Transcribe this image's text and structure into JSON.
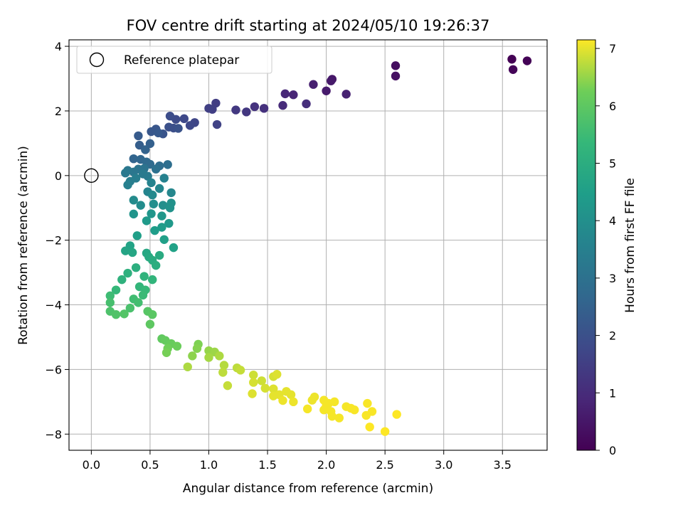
{
  "chart_data": {
    "type": "scatter",
    "title": "FOV centre drift starting at 2024/05/10 19:26:37",
    "xlabel": "Angular distance from reference (arcmin)",
    "ylabel": "Rotation from reference (arcmin)",
    "xlim": [
      -0.19,
      3.88
    ],
    "ylim": [
      -8.5,
      4.2
    ],
    "xticks": [
      0.0,
      0.5,
      1.0,
      1.5,
      2.0,
      2.5,
      3.0,
      3.5
    ],
    "xtick_labels": [
      "0.0",
      "0.5",
      "1.0",
      "1.5",
      "2.0",
      "2.5",
      "3.0",
      "3.5"
    ],
    "yticks": [
      -8,
      -6,
      -4,
      -2,
      0,
      2,
      4
    ],
    "ytick_labels": [
      "−8",
      "−6",
      "−4",
      "−2",
      "0",
      "2",
      "4"
    ],
    "grid": true,
    "legend": {
      "placement": "top-left",
      "entries": [
        {
          "label": "Reference platepar",
          "marker": "open-circle"
        }
      ]
    },
    "reference_point": {
      "x": 0.0,
      "y": 0.0
    },
    "colorbar": {
      "label": "Hours from first FF file",
      "colormap": "viridis",
      "range": [
        0,
        7.15
      ],
      "ticks": [
        0,
        1,
        2,
        3,
        4,
        5,
        6,
        7
      ],
      "tick_labels": [
        "0",
        "1",
        "2",
        "3",
        "4",
        "5",
        "6",
        "7"
      ]
    },
    "series": [
      {
        "points": [
          [
            3.58,
            3.6,
            0.0
          ],
          [
            3.71,
            3.55,
            0.05
          ],
          [
            3.59,
            3.28,
            0.1
          ],
          [
            2.59,
            3.4,
            0.3
          ],
          [
            2.59,
            3.08,
            0.35
          ],
          [
            2.05,
            2.98,
            0.5
          ],
          [
            2.04,
            2.93,
            0.55
          ],
          [
            2.0,
            2.62,
            0.6
          ],
          [
            1.89,
            2.82,
            0.7
          ],
          [
            2.17,
            2.52,
            0.75
          ],
          [
            1.72,
            2.5,
            0.85
          ],
          [
            1.65,
            2.53,
            0.9
          ],
          [
            1.63,
            2.17,
            1.0
          ],
          [
            1.83,
            2.22,
            1.05
          ],
          [
            1.47,
            2.08,
            1.15
          ],
          [
            1.39,
            2.13,
            1.2
          ],
          [
            1.32,
            1.97,
            1.3
          ],
          [
            1.23,
            2.03,
            1.35
          ],
          [
            1.06,
            2.24,
            1.45
          ],
          [
            1.03,
            2.05,
            1.5
          ],
          [
            1.0,
            2.08,
            1.55
          ],
          [
            1.07,
            1.58,
            1.6
          ],
          [
            0.88,
            1.64,
            1.7
          ],
          [
            0.84,
            1.55,
            1.75
          ],
          [
            0.79,
            1.76,
            1.8
          ],
          [
            0.72,
            1.74,
            1.85
          ],
          [
            0.67,
            1.84,
            1.9
          ],
          [
            0.7,
            1.47,
            1.95
          ],
          [
            0.66,
            1.5,
            2.0
          ],
          [
            0.74,
            1.46,
            2.05
          ],
          [
            0.61,
            1.29,
            2.1
          ],
          [
            0.55,
            1.44,
            2.15
          ],
          [
            0.51,
            1.36,
            2.2
          ],
          [
            0.57,
            1.32,
            2.25
          ],
          [
            0.4,
            1.23,
            2.3
          ],
          [
            0.41,
            0.94,
            2.4
          ],
          [
            0.5,
            0.99,
            2.45
          ],
          [
            0.46,
            0.8,
            2.55
          ],
          [
            0.36,
            0.52,
            2.6
          ],
          [
            0.42,
            0.5,
            2.65
          ],
          [
            0.47,
            0.42,
            2.75
          ],
          [
            0.5,
            0.35,
            2.8
          ],
          [
            0.58,
            0.3,
            2.85
          ],
          [
            0.65,
            0.34,
            2.9
          ],
          [
            0.55,
            0.2,
            3.0
          ],
          [
            0.45,
            0.22,
            3.05
          ],
          [
            0.4,
            0.2,
            3.1
          ],
          [
            0.36,
            0.11,
            3.15
          ],
          [
            0.31,
            0.16,
            3.2
          ],
          [
            0.29,
            0.08,
            3.25
          ],
          [
            0.44,
            0.05,
            3.3
          ],
          [
            0.48,
            -0.02,
            3.35
          ],
          [
            0.38,
            -0.08,
            3.4
          ],
          [
            0.33,
            -0.18,
            3.45
          ],
          [
            0.31,
            -0.29,
            3.5
          ],
          [
            0.62,
            -0.08,
            3.55
          ],
          [
            0.51,
            -0.22,
            3.6
          ],
          [
            0.48,
            -0.5,
            3.65
          ],
          [
            0.58,
            -0.4,
            3.7
          ],
          [
            0.68,
            -0.53,
            3.75
          ],
          [
            0.52,
            -0.6,
            3.8
          ],
          [
            0.36,
            -0.76,
            3.85
          ],
          [
            0.42,
            -0.92,
            3.9
          ],
          [
            0.53,
            -0.88,
            3.95
          ],
          [
            0.61,
            -0.92,
            4.0
          ],
          [
            0.68,
            -0.85,
            4.05
          ],
          [
            0.67,
            -1.0,
            4.1
          ],
          [
            0.36,
            -1.19,
            4.15
          ],
          [
            0.51,
            -1.18,
            4.2
          ],
          [
            0.6,
            -1.25,
            4.25
          ],
          [
            0.66,
            -1.48,
            4.3
          ],
          [
            0.47,
            -1.4,
            4.35
          ],
          [
            0.6,
            -1.6,
            4.4
          ],
          [
            0.54,
            -1.7,
            4.45
          ],
          [
            0.39,
            -1.86,
            4.5
          ],
          [
            0.62,
            -1.98,
            4.55
          ],
          [
            0.7,
            -2.23,
            4.6
          ],
          [
            0.33,
            -2.17,
            4.65
          ],
          [
            0.29,
            -2.33,
            4.7
          ],
          [
            0.35,
            -2.38,
            4.75
          ],
          [
            0.47,
            -2.4,
            4.8
          ],
          [
            0.49,
            -2.52,
            4.85
          ],
          [
            0.58,
            -2.47,
            4.9
          ],
          [
            0.52,
            -2.62,
            4.95
          ],
          [
            0.55,
            -2.78,
            5.0
          ],
          [
            0.38,
            -2.85,
            5.05
          ],
          [
            0.31,
            -3.02,
            5.1
          ],
          [
            0.26,
            -3.22,
            5.15
          ],
          [
            0.45,
            -3.12,
            5.2
          ],
          [
            0.52,
            -3.22,
            5.25
          ],
          [
            0.41,
            -3.44,
            5.3
          ],
          [
            0.21,
            -3.54,
            5.35
          ],
          [
            0.46,
            -3.54,
            5.4
          ],
          [
            0.44,
            -3.7,
            5.45
          ],
          [
            0.16,
            -3.72,
            5.5
          ],
          [
            0.36,
            -3.82,
            5.55
          ],
          [
            0.4,
            -3.93,
            5.6
          ],
          [
            0.16,
            -3.93,
            5.65
          ],
          [
            0.33,
            -4.1,
            5.7
          ],
          [
            0.16,
            -4.2,
            5.75
          ],
          [
            0.21,
            -4.3,
            5.8
          ],
          [
            0.28,
            -4.28,
            5.85
          ],
          [
            0.48,
            -4.2,
            5.9
          ],
          [
            0.52,
            -4.3,
            5.95
          ],
          [
            0.5,
            -4.6,
            6.0
          ],
          [
            0.6,
            -5.05,
            6.05
          ],
          [
            0.63,
            -5.1,
            6.1
          ],
          [
            0.68,
            -5.2,
            6.15
          ],
          [
            0.73,
            -5.28,
            6.2
          ],
          [
            0.65,
            -5.35,
            6.25
          ],
          [
            0.64,
            -5.48,
            6.3
          ],
          [
            0.91,
            -5.22,
            6.35
          ],
          [
            0.9,
            -5.35,
            6.4
          ],
          [
            0.86,
            -5.58,
            6.45
          ],
          [
            1.0,
            -5.42,
            6.5
          ],
          [
            1.05,
            -5.46,
            6.55
          ],
          [
            1.0,
            -5.63,
            6.6
          ],
          [
            1.09,
            -5.58,
            6.65
          ],
          [
            0.82,
            -5.92,
            6.65
          ],
          [
            1.13,
            -5.87,
            6.7
          ],
          [
            1.12,
            -6.09,
            6.75
          ],
          [
            1.24,
            -5.95,
            6.75
          ],
          [
            1.27,
            -6.02,
            6.8
          ],
          [
            1.16,
            -6.5,
            6.8
          ],
          [
            1.38,
            -6.17,
            6.85
          ],
          [
            1.45,
            -6.35,
            6.85
          ],
          [
            1.38,
            -6.4,
            6.9
          ],
          [
            1.48,
            -6.58,
            6.9
          ],
          [
            1.55,
            -6.22,
            6.9
          ],
          [
            1.58,
            -6.15,
            6.95
          ],
          [
            1.37,
            -6.75,
            6.95
          ],
          [
            1.55,
            -6.6,
            6.95
          ],
          [
            1.6,
            -6.78,
            7.0
          ],
          [
            1.55,
            -6.82,
            7.0
          ],
          [
            1.66,
            -6.68,
            7.0
          ],
          [
            1.7,
            -6.78,
            7.0
          ],
          [
            1.63,
            -6.96,
            7.05
          ],
          [
            1.72,
            -7.0,
            7.05
          ],
          [
            1.9,
            -6.85,
            7.05
          ],
          [
            1.88,
            -6.95,
            7.05
          ],
          [
            1.84,
            -7.22,
            7.1
          ],
          [
            1.98,
            -6.95,
            7.1
          ],
          [
            2.02,
            -7.05,
            7.1
          ],
          [
            2.07,
            -7.0,
            7.1
          ],
          [
            2.0,
            -7.12,
            7.1
          ],
          [
            1.98,
            -7.25,
            7.1
          ],
          [
            2.04,
            -7.3,
            7.1
          ],
          [
            2.05,
            -7.45,
            7.1
          ],
          [
            2.11,
            -7.5,
            7.1
          ],
          [
            2.17,
            -7.15,
            7.1
          ],
          [
            2.21,
            -7.2,
            7.12
          ],
          [
            2.24,
            -7.25,
            7.12
          ],
          [
            2.35,
            -7.05,
            7.12
          ],
          [
            2.39,
            -7.3,
            7.12
          ],
          [
            2.34,
            -7.42,
            7.12
          ],
          [
            2.37,
            -7.78,
            7.15
          ],
          [
            2.6,
            -7.39,
            7.15
          ],
          [
            2.5,
            -7.92,
            7.15
          ]
        ]
      }
    ]
  }
}
